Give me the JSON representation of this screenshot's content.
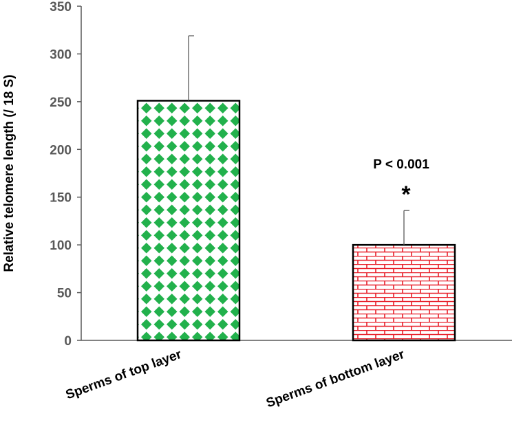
{
  "chart_data": {
    "type": "bar",
    "categories": [
      "Sperms of  top layer",
      "Sperms of  bottom  layer"
    ],
    "values": [
      251,
      100
    ],
    "errors": [
      68,
      36
    ],
    "ylabel": "Relative telomere length (/ 18 S)",
    "ylim": [
      0,
      350
    ],
    "yticks": [
      0,
      50,
      100,
      150,
      200,
      250,
      300,
      350
    ],
    "grid": false,
    "legend": "none",
    "colors": {
      "top_layer": "#22b14c",
      "bottom_layer": "#e8202a",
      "axis": "#595959"
    },
    "annotations": [
      {
        "text": "P < 0.001",
        "bar": 1
      },
      {
        "text": "*",
        "bar": 1
      }
    ]
  }
}
